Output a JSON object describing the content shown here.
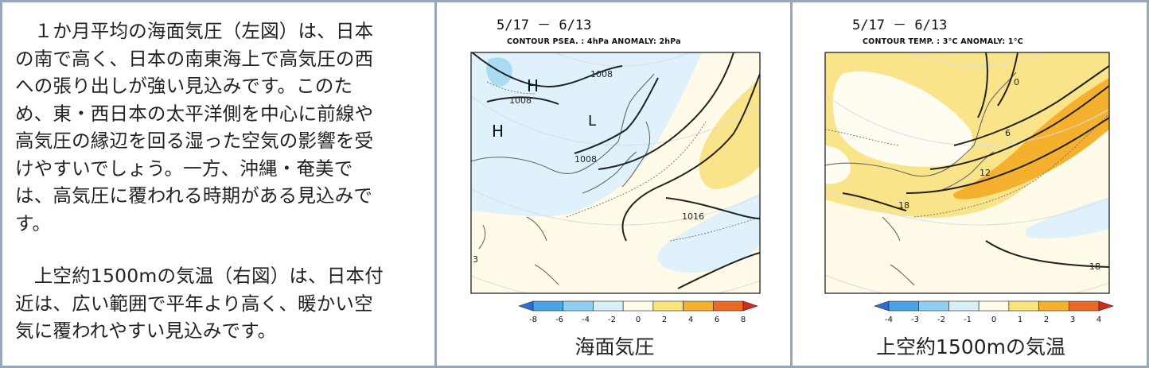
{
  "text_panel": {
    "paragraph1_lines": [
      "　１か月平均の海面気圧（左図）は、日本",
      "の南で高く、日本の南東海上で高気圧の西",
      "への張り出しが強い見込みです。このた",
      "め、東・西日本の太平洋側を中心に前線や",
      "高気圧の縁辺を回る湿った空気の影響を受",
      "けやすいでしょう。一方、沖縄・奄美で",
      "は、高気圧に覆われる時期がある見込みで",
      "す。"
    ],
    "paragraph2_lines": [
      "　上空約1500mの気温（右図）は、日本付",
      "近は、広い範囲で平年より高く、暖かい空",
      "気に覆われやすい見込みです。"
    ]
  },
  "left_map": {
    "period": "5/17 － 6/13",
    "contour": "CONTOUR PSEA. :  4hPa    ANOMALY:  2hPa",
    "labels": {
      "H1": "H",
      "H2": "H",
      "L": "L",
      "c1008a": "1008",
      "c1008b": "1008",
      "c1008c": "1008",
      "c1016": "1016",
      "c3": "3"
    },
    "colorbar_ticks": [
      "-8",
      "-6",
      "-4",
      "-2",
      "0",
      "2",
      "4",
      "6",
      "8"
    ],
    "colorbar_colors": [
      "#2e6fd6",
      "#4aa5e8",
      "#8fd0f0",
      "#d7f0f7",
      "#fffbe6",
      "#f8e27a",
      "#f5b02e",
      "#ec6a26",
      "#d62a1e"
    ],
    "caption": "海面気圧"
  },
  "right_map": {
    "period": "5/17 － 6/13",
    "contour": "CONTOUR TEMP. :  3°C    ANOMALY:  1°C",
    "labels": {
      "c6": "6",
      "c12": "12",
      "c18a": "18",
      "c18b": "18",
      "c0": "0"
    },
    "colorbar_ticks": [
      "-4",
      "-3",
      "-2",
      "-1",
      "0",
      "1",
      "2",
      "3",
      "4"
    ],
    "colorbar_colors": [
      "#2e6fd6",
      "#4aa5e8",
      "#8fd0f0",
      "#d7f0f7",
      "#fffbe6",
      "#f8e27a",
      "#f5b02e",
      "#ec6a26",
      "#d62a1e"
    ],
    "caption": "上空約1500mの気温"
  }
}
